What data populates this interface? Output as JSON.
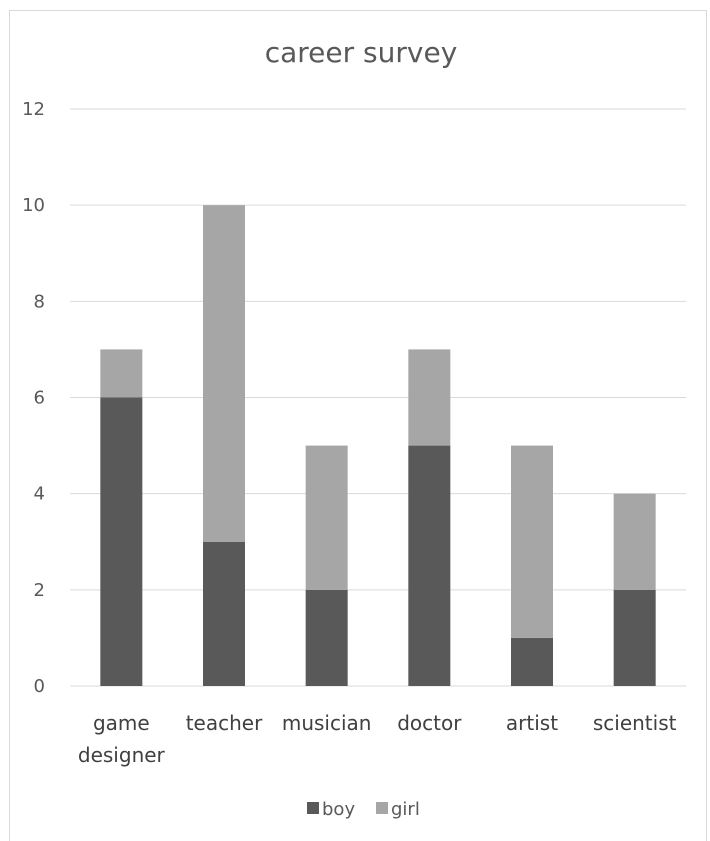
{
  "chart_data": {
    "type": "bar",
    "stacked": true,
    "title": "career survey",
    "xlabel": "",
    "ylabel": "",
    "categories": [
      [
        "game",
        "designer"
      ],
      [
        "teacher"
      ],
      [
        "musician"
      ],
      [
        "doctor"
      ],
      [
        "artist"
      ],
      [
        "scientist"
      ]
    ],
    "series": [
      {
        "name": "boy",
        "values": [
          6,
          3,
          2,
          5,
          1,
          2
        ],
        "color": "#595959"
      },
      {
        "name": "girl",
        "values": [
          1,
          7,
          3,
          2,
          4,
          2
        ],
        "color": "#a6a6a6"
      }
    ],
    "ylim": [
      0,
      12
    ],
    "yticks": [
      0,
      2,
      4,
      6,
      8,
      10,
      12
    ],
    "grid": true,
    "legend_position": "bottom"
  }
}
